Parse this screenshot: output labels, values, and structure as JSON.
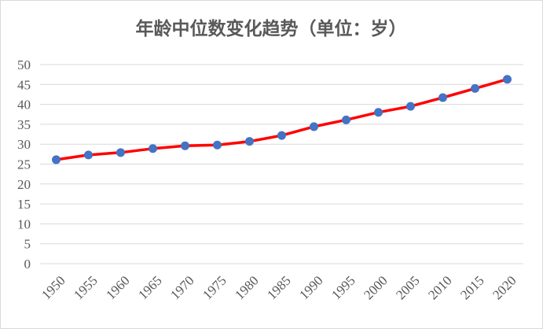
{
  "chart_data": {
    "type": "line",
    "title": "年龄中位数变化趋势（单位：岁）",
    "x": [
      "1950",
      "1955",
      "1960",
      "1965",
      "1970",
      "1975",
      "1980",
      "1985",
      "1990",
      "1995",
      "2000",
      "2005",
      "2010",
      "2015",
      "2020"
    ],
    "series": [
      {
        "values": [
          26.1,
          27.3,
          27.9,
          28.9,
          29.6,
          29.8,
          30.7,
          32.2,
          34.4,
          36.1,
          38.0,
          39.5,
          41.7,
          44.0,
          46.3
        ]
      }
    ],
    "ylim": [
      0,
      50
    ],
    "yticks": [
      0,
      5,
      10,
      15,
      20,
      25,
      30,
      35,
      40,
      45,
      50
    ],
    "grid": true,
    "legend": "none",
    "colors": {
      "line": "#ff0000",
      "marker": "#4472c4",
      "grid": "#d9d9d9",
      "text": "#595959"
    }
  }
}
